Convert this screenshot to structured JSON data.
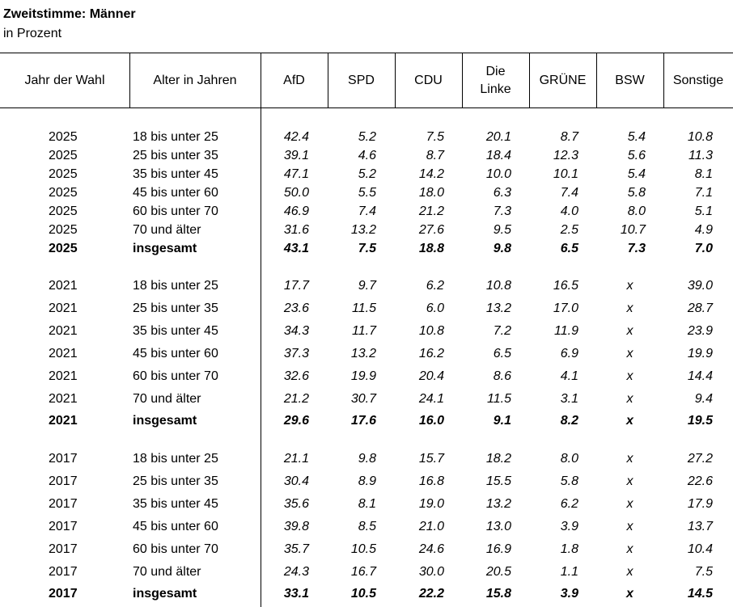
{
  "title": "Zweitstimme: Männer",
  "subtitle": "in Prozent",
  "columns": [
    "Jahr der Wahl",
    "Alter in Jahren",
    "AfD",
    "SPD",
    "CDU",
    "Die Linke",
    "GRÜNE",
    "BSW",
    "Sonstige"
  ],
  "rows": [
    {
      "year": "2025",
      "age": "18 bis unter 25",
      "values": [
        "42.4",
        "5.2",
        "7.5",
        "20.1",
        "8.7",
        "5.4",
        "10.8"
      ],
      "bold": false
    },
    {
      "year": "2025",
      "age": "25 bis unter 35",
      "values": [
        "39.1",
        "4.6",
        "8.7",
        "18.4",
        "12.3",
        "5.6",
        "11.3"
      ],
      "bold": false
    },
    {
      "year": "2025",
      "age": "35 bis unter 45",
      "values": [
        "47.1",
        "5.2",
        "14.2",
        "10.0",
        "10.1",
        "5.4",
        "8.1"
      ],
      "bold": false
    },
    {
      "year": "2025",
      "age": "45 bis unter 60",
      "values": [
        "50.0",
        "5.5",
        "18.0",
        "6.3",
        "7.4",
        "5.8",
        "7.1"
      ],
      "bold": false
    },
    {
      "year": "2025",
      "age": "60 bis unter 70",
      "values": [
        "46.9",
        "7.4",
        "21.2",
        "7.3",
        "4.0",
        "8.0",
        "5.1"
      ],
      "bold": false
    },
    {
      "year": "2025",
      "age": "70 und älter",
      "values": [
        "31.6",
        "13.2",
        "27.6",
        "9.5",
        "2.5",
        "10.7",
        "4.9"
      ],
      "bold": false
    },
    {
      "year": "2025",
      "age": "insgesamt",
      "values": [
        "43.1",
        "7.5",
        "18.8",
        "9.8",
        "6.5",
        "7.3",
        "7.0"
      ],
      "bold": true
    },
    {
      "year": "2021",
      "age": "18 bis unter 25",
      "values": [
        "17.7",
        "9.7",
        "6.2",
        "10.8",
        "16.5",
        "x",
        "39.0"
      ],
      "bold": false
    },
    {
      "year": "2021",
      "age": "25 bis unter 35",
      "values": [
        "23.6",
        "11.5",
        "6.0",
        "13.2",
        "17.0",
        "x",
        "28.7"
      ],
      "bold": false
    },
    {
      "year": "2021",
      "age": "35 bis unter 45",
      "values": [
        "34.3",
        "11.7",
        "10.8",
        "7.2",
        "11.9",
        "x",
        "23.9"
      ],
      "bold": false
    },
    {
      "year": "2021",
      "age": "45 bis unter 60",
      "values": [
        "37.3",
        "13.2",
        "16.2",
        "6.5",
        "6.9",
        "x",
        "19.9"
      ],
      "bold": false
    },
    {
      "year": "2021",
      "age": "60 bis unter 70",
      "values": [
        "32.6",
        "19.9",
        "20.4",
        "8.6",
        "4.1",
        "x",
        "14.4"
      ],
      "bold": false
    },
    {
      "year": "2021",
      "age": "70 und älter",
      "values": [
        "21.2",
        "30.7",
        "24.1",
        "11.5",
        "3.1",
        "x",
        "9.4"
      ],
      "bold": false
    },
    {
      "year": "2021",
      "age": "insgesamt",
      "values": [
        "29.6",
        "17.6",
        "16.0",
        "9.1",
        "8.2",
        "x",
        "19.5"
      ],
      "bold": true
    },
    {
      "year": "2017",
      "age": "18 bis unter 25",
      "values": [
        "21.1",
        "9.8",
        "15.7",
        "18.2",
        "8.0",
        "x",
        "27.2"
      ],
      "bold": false
    },
    {
      "year": "2017",
      "age": "25 bis unter 35",
      "values": [
        "30.4",
        "8.9",
        "16.8",
        "15.5",
        "5.8",
        "x",
        "22.6"
      ],
      "bold": false
    },
    {
      "year": "2017",
      "age": "35 bis unter 45",
      "values": [
        "35.6",
        "8.1",
        "19.0",
        "13.2",
        "6.2",
        "x",
        "17.9"
      ],
      "bold": false
    },
    {
      "year": "2017",
      "age": "45 bis unter 60",
      "values": [
        "39.8",
        "8.5",
        "21.0",
        "13.0",
        "3.9",
        "x",
        "13.7"
      ],
      "bold": false
    },
    {
      "year": "2017",
      "age": "60 bis unter 70",
      "values": [
        "35.7",
        "10.5",
        "24.6",
        "16.9",
        "1.8",
        "x",
        "10.4"
      ],
      "bold": false
    },
    {
      "year": "2017",
      "age": "70 und älter",
      "values": [
        "24.3",
        "16.7",
        "30.0",
        "20.5",
        "1.1",
        "x",
        "7.5"
      ],
      "bold": false
    },
    {
      "year": "2017",
      "age": "insgesamt",
      "values": [
        "33.1",
        "10.5",
        "22.2",
        "15.8",
        "3.9",
        "x",
        "14.5"
      ],
      "bold": true
    }
  ]
}
